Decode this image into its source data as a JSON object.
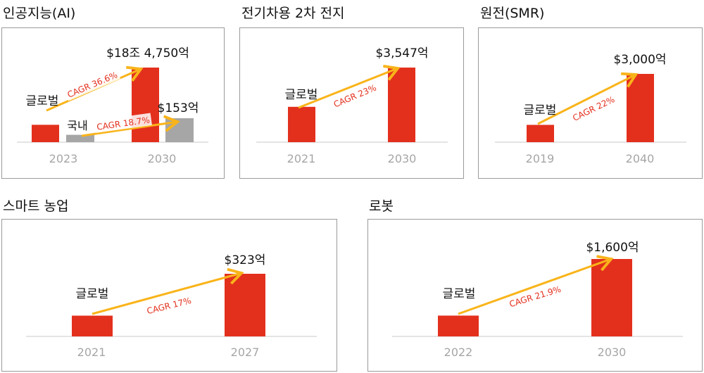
{
  "colors": {
    "bar_global": "#e3301d",
    "bar_domestic": "#a6a6a6",
    "arrow": "#f9b41a",
    "cagr_text": "#e3301d",
    "tick": "#a6a6a6"
  },
  "chart_data": [
    {
      "type": "bar",
      "title": "인공지능(AI)",
      "categories": [
        "2023",
        "2030"
      ],
      "series": [
        {
          "name": "글로벌",
          "values": [
            4.3,
            18.475
          ],
          "value_labels": [
            "",
            "$18조 4,750억"
          ]
        },
        {
          "name": "국내",
          "values": [
            0.047,
            0.153
          ],
          "value_labels": [
            "",
            "$153억"
          ]
        }
      ],
      "annotations": [
        "CAGR 36.6%",
        "CAGR 18.7%"
      ]
    },
    {
      "type": "bar",
      "title": "전기차용 2차 전지",
      "categories": [
        "2021",
        "2030"
      ],
      "series": [
        {
          "name": "글로벌",
          "values": [
            1680,
            3547
          ],
          "value_labels": [
            "",
            "$3,547억"
          ]
        }
      ],
      "annotations": [
        "CAGR 23%"
      ]
    },
    {
      "type": "bar",
      "title": "원전(SMR)",
      "categories": [
        "2019",
        "2040"
      ],
      "series": [
        {
          "name": "글로벌",
          "values": [
            760,
            3000
          ],
          "value_labels": [
            "",
            "$3,000억"
          ]
        }
      ],
      "annotations": [
        "CAGR 22%"
      ]
    },
    {
      "type": "bar",
      "title": "스마트 농업",
      "categories": [
        "2021",
        "2027"
      ],
      "series": [
        {
          "name": "글로벌",
          "values": [
            107,
            323
          ],
          "value_labels": [
            "",
            "$323억"
          ]
        }
      ],
      "annotations": [
        "CAGR 17%"
      ]
    },
    {
      "type": "bar",
      "title": "로봇",
      "categories": [
        "2022",
        "2030"
      ],
      "series": [
        {
          "name": "글로벌",
          "values": [
            430,
            1600
          ],
          "value_labels": [
            "",
            "$1,600억"
          ]
        }
      ],
      "annotations": [
        "CAGR 21.9%"
      ]
    }
  ]
}
